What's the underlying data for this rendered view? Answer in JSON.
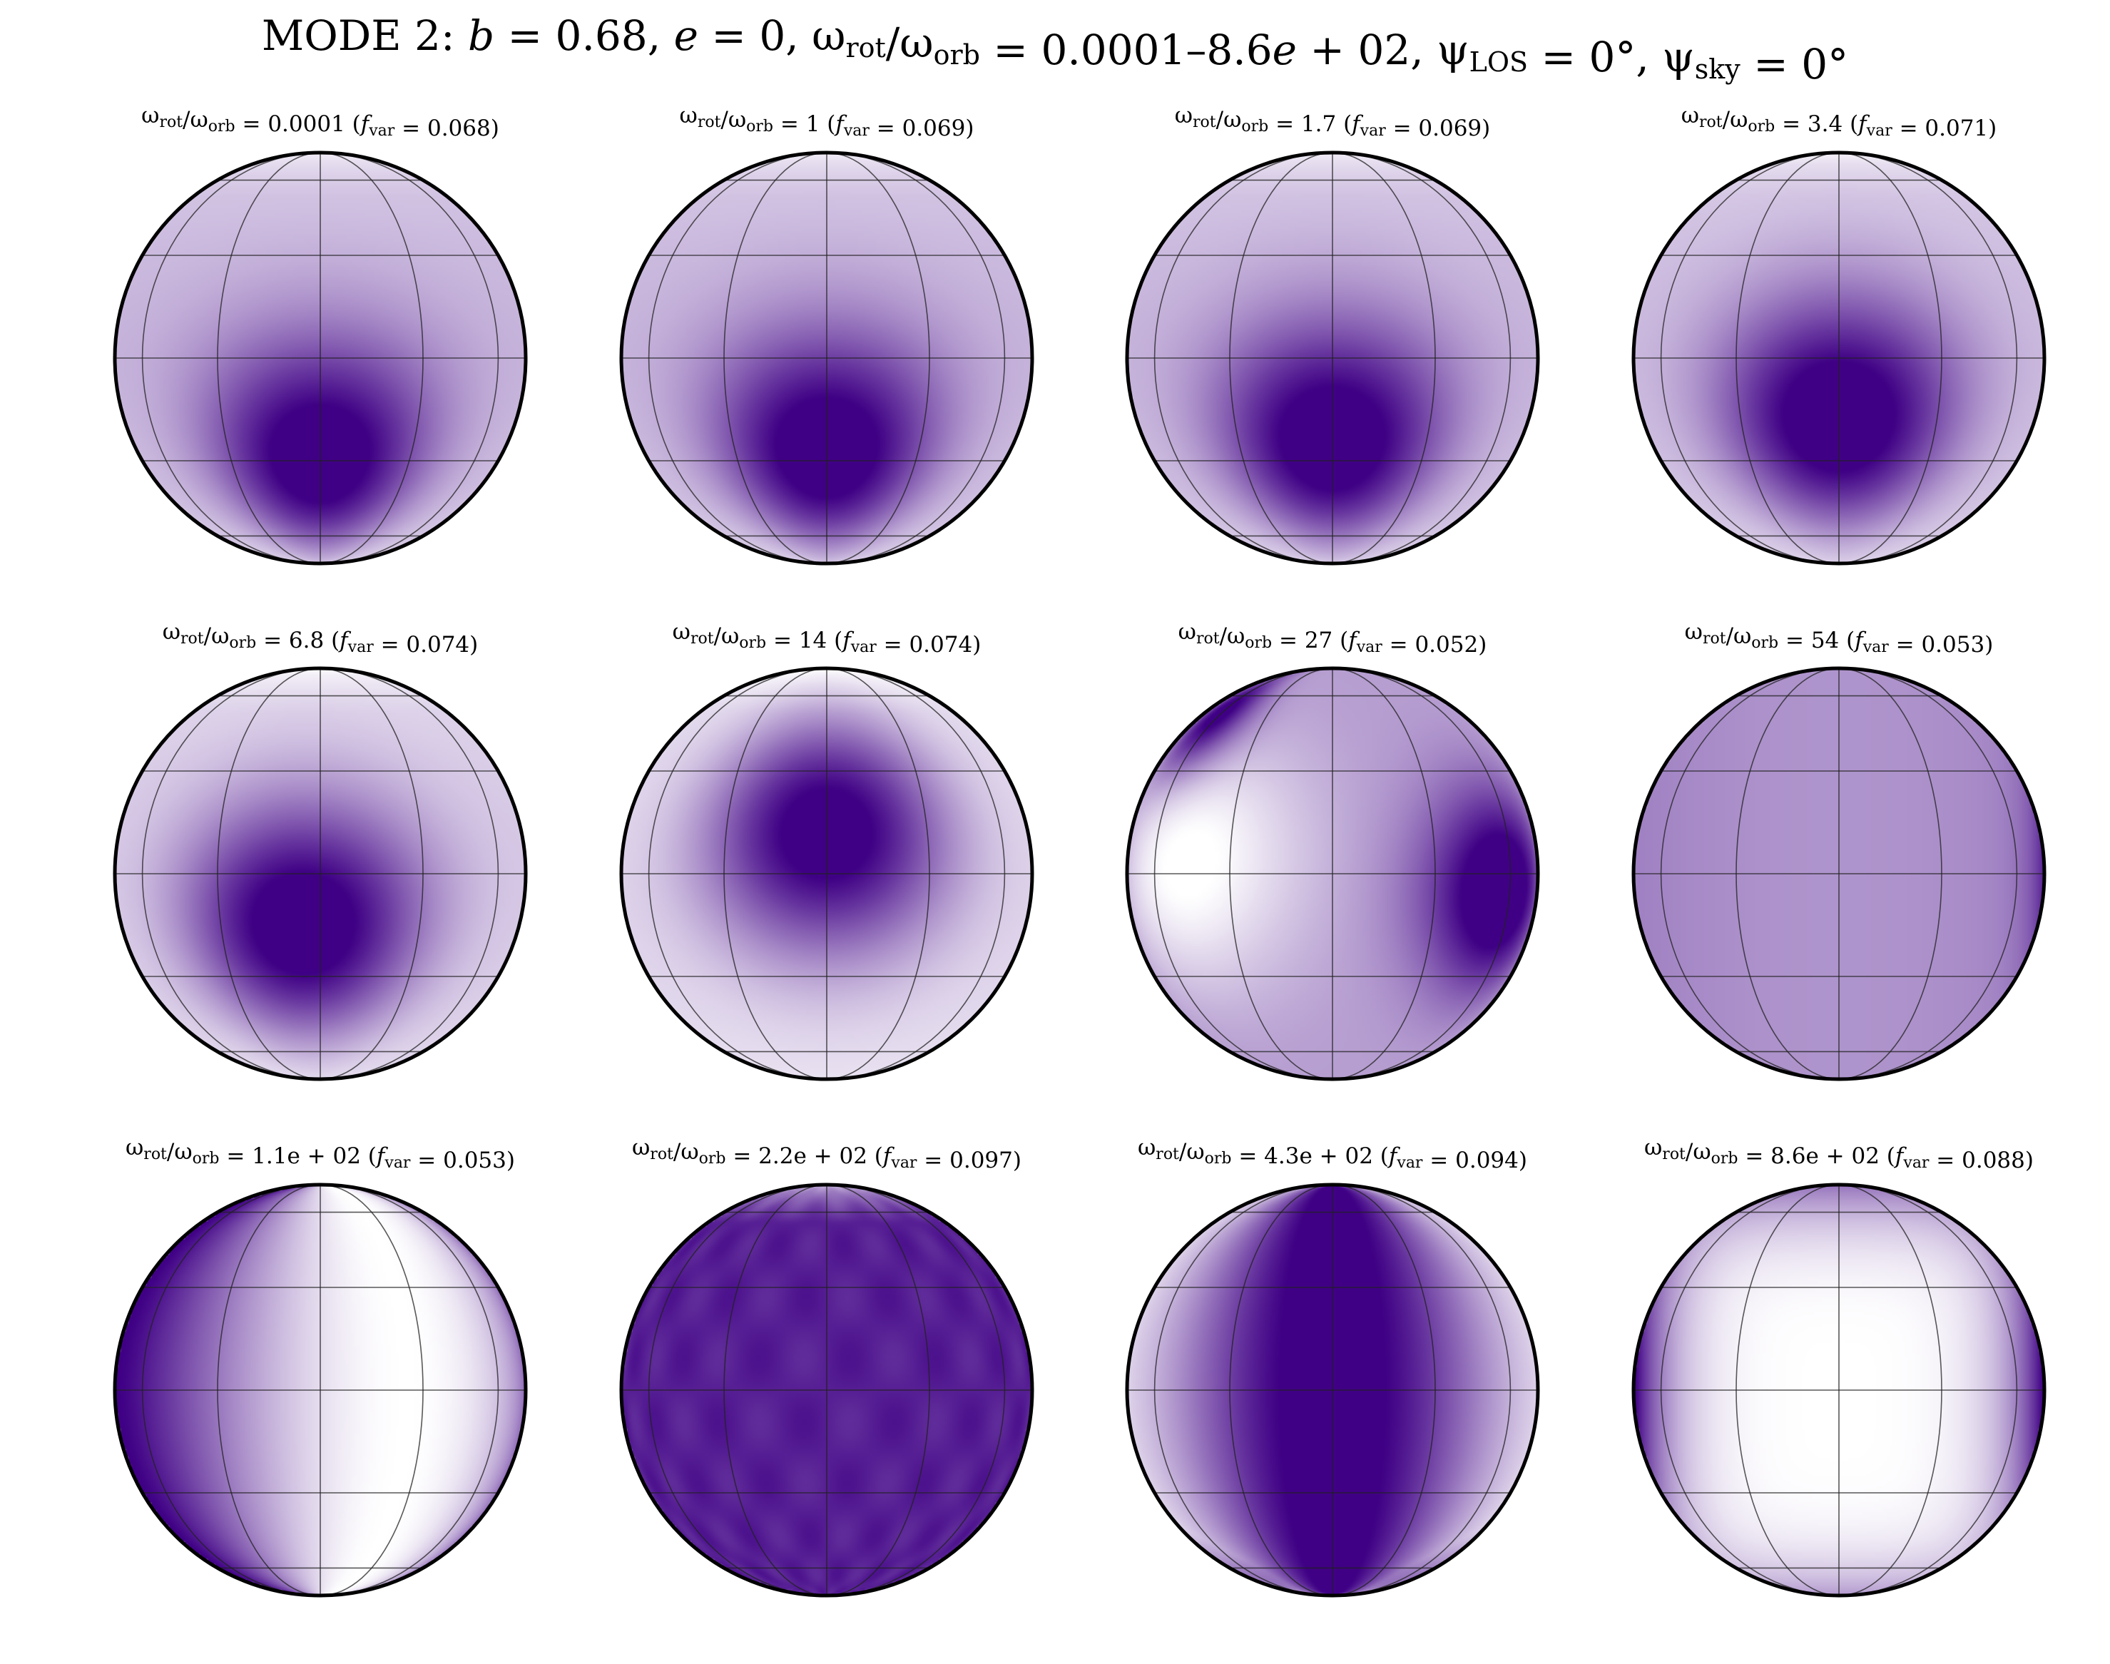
{
  "figure": {
    "title": "MODE 2: b = 0.68, e = 0, ωrot/ωorb = 0.0001–8.6e + 02, ψLOS = 0°, ψsky = 0°",
    "title_parts": [
      {
        "text": "MODE 2: "
      },
      {
        "text": "b",
        "italic": true
      },
      {
        "text": " = 0.68, "
      },
      {
        "text": "e",
        "italic": true
      },
      {
        "text": " = 0, ω"
      },
      {
        "text": "rot",
        "sub": true
      },
      {
        "text": "/ω"
      },
      {
        "text": "orb",
        "sub": true
      },
      {
        "text": " = 0.0001–8.6"
      },
      {
        "text": "e",
        "italic": true
      },
      {
        "text": " + 02, ψ"
      },
      {
        "text": "LOS",
        "sub": true
      },
      {
        "text": " = 0°, ψ"
      },
      {
        "text": "sky",
        "sub": true
      },
      {
        "text": " = 0°"
      }
    ]
  },
  "colors": {
    "background": "#ffffff",
    "map_light": "#ffffff",
    "map_dark": "#3f0085",
    "limb": "#000000",
    "grid": "#222222"
  },
  "panels": [
    {
      "ratio": "0.0001",
      "fvar": "0.068",
      "label": "ωrot/ωorb = 0.0001 (fvar = 0.068)",
      "pattern": "spot",
      "spot": {
        "lon": 0,
        "lat": -30
      },
      "base": 0.3,
      "amp": 0.9
    },
    {
      "ratio": "1",
      "fvar": "0.069",
      "label": "ωrot/ωorb = 1 (fvar = 0.069)",
      "pattern": "spot",
      "spot": {
        "lon": 0,
        "lat": -28
      },
      "base": 0.3,
      "amp": 0.9
    },
    {
      "ratio": "1.7",
      "fvar": "0.069",
      "label": "ωrot/ωorb = 1.7 (fvar = 0.069)",
      "pattern": "spot",
      "spot": {
        "lon": 0,
        "lat": -25
      },
      "base": 0.3,
      "amp": 0.9
    },
    {
      "ratio": "3.4",
      "fvar": "0.071",
      "label": "ωrot/ωorb = 3.4 (fvar = 0.071)",
      "pattern": "spot",
      "spot": {
        "lon": 0,
        "lat": -18
      },
      "base": 0.28,
      "amp": 0.92
    },
    {
      "ratio": "6.8",
      "fvar": "0.074",
      "label": "ωrot/ωorb = 6.8 (fvar = 0.074)",
      "pattern": "spot",
      "spot": {
        "lon": -5,
        "lat": -15
      },
      "base": 0.22,
      "amp": 0.95
    },
    {
      "ratio": "14",
      "fvar": "0.074",
      "label": "ωrot/ωorb = 14 (fvar = 0.074)",
      "pattern": "spot",
      "spot": {
        "lon": 0,
        "lat": 12
      },
      "base": 0.18,
      "amp": 0.95
    },
    {
      "ratio": "27",
      "fvar": "0.052",
      "label": "ωrot/ωorb = 27 (fvar = 0.052)",
      "pattern": "twospot",
      "spot": {
        "lon": 55,
        "lat": -5
      },
      "spot2": {
        "lon": -60,
        "lat": 50
      },
      "base": 0.2,
      "amp": 0.85
    },
    {
      "ratio": "54",
      "fvar": "0.053",
      "label": "ωrot/ωorb = 54 (fvar = 0.053)",
      "pattern": "uniform",
      "base": 0.4,
      "amp": 0.15
    },
    {
      "ratio": "1.1e + 02",
      "fvar": "0.053",
      "label": "ωrot/ωorb = 1.1e + 02 (fvar = 0.053)",
      "pattern": "bands",
      "base": 0.5,
      "amp": 0.5,
      "phase": 2.4
    },
    {
      "ratio": "2.2e + 02",
      "fvar": "0.097",
      "label": "ωrot/ωorb = 2.2e + 02 (fvar = 0.097)",
      "pattern": "dark",
      "base": 0.88,
      "amp": 0.05
    },
    {
      "ratio": "4.3e + 02",
      "fvar": "0.094",
      "label": "ωrot/ωorb = 4.3e + 02 (fvar = 0.094)",
      "pattern": "centerband",
      "base": 0.4,
      "amp": 0.55
    },
    {
      "ratio": "8.6e + 02",
      "fvar": "0.088",
      "label": "ωrot/ωorb = 8.6e + 02 (fvar = 0.088)",
      "pattern": "edges",
      "base": 0.05,
      "amp": 0.9
    }
  ],
  "layout_grid": {
    "rows": 3,
    "cols": 4
  },
  "graticule": {
    "latitudes": [
      -60,
      -30,
      0,
      30,
      60
    ],
    "longitudes": [
      -60,
      -30,
      0,
      30,
      60
    ]
  }
}
